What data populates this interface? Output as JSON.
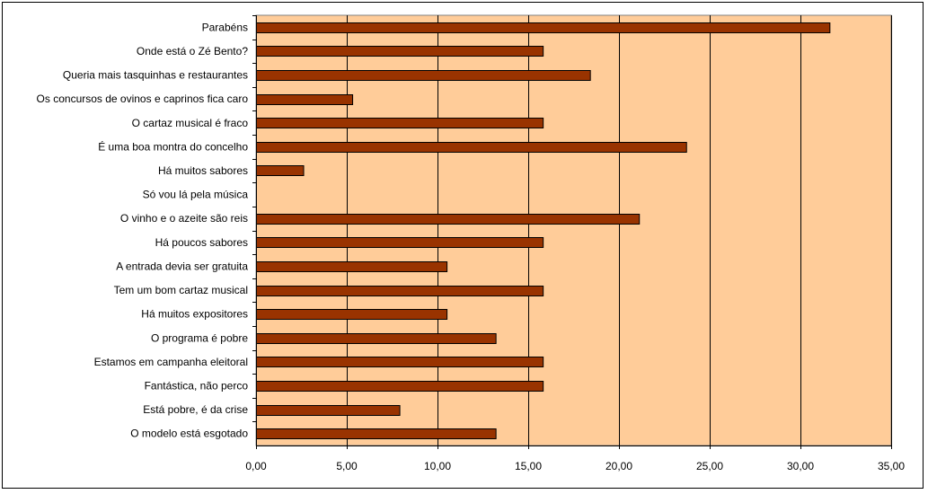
{
  "chart_data": {
    "type": "bar",
    "orientation": "horizontal",
    "categories": [
      "Parabéns",
      "Onde está o Zé Bento?",
      "Queria mais tasquinhas e restaurantes",
      "Os concursos de ovinos e caprinos fica caro",
      "O cartaz musical é fraco",
      "É uma boa montra do concelho",
      "Há muitos sabores",
      "Só vou lá pela música",
      "O vinho e o azeite são reis",
      "Há poucos sabores",
      "A entrada devia ser gratuita",
      "Tem um bom cartaz musical",
      "Há muitos expositores",
      "O programa é pobre",
      "Estamos em campanha eleitoral",
      "Fantástica, não perco",
      "Está pobre, é da crise",
      "O modelo está esgotado"
    ],
    "values": [
      31.6,
      15.8,
      18.4,
      5.3,
      15.8,
      23.7,
      2.6,
      0,
      21.1,
      15.8,
      10.5,
      15.8,
      10.5,
      13.2,
      15.8,
      15.8,
      7.9,
      13.2
    ],
    "xlim": [
      0,
      35
    ],
    "xticks": [
      "0,00",
      "5,00",
      "10,00",
      "15,00",
      "20,00",
      "25,00",
      "30,00",
      "35,00"
    ],
    "xtick_values": [
      0,
      5,
      10,
      15,
      20,
      25,
      30,
      35
    ],
    "grid": true,
    "legend": "none",
    "colors": {
      "plot_bg": "#FFCC99",
      "bar": "#993300",
      "bar_edge": "#000000",
      "grid": "#000000"
    }
  }
}
